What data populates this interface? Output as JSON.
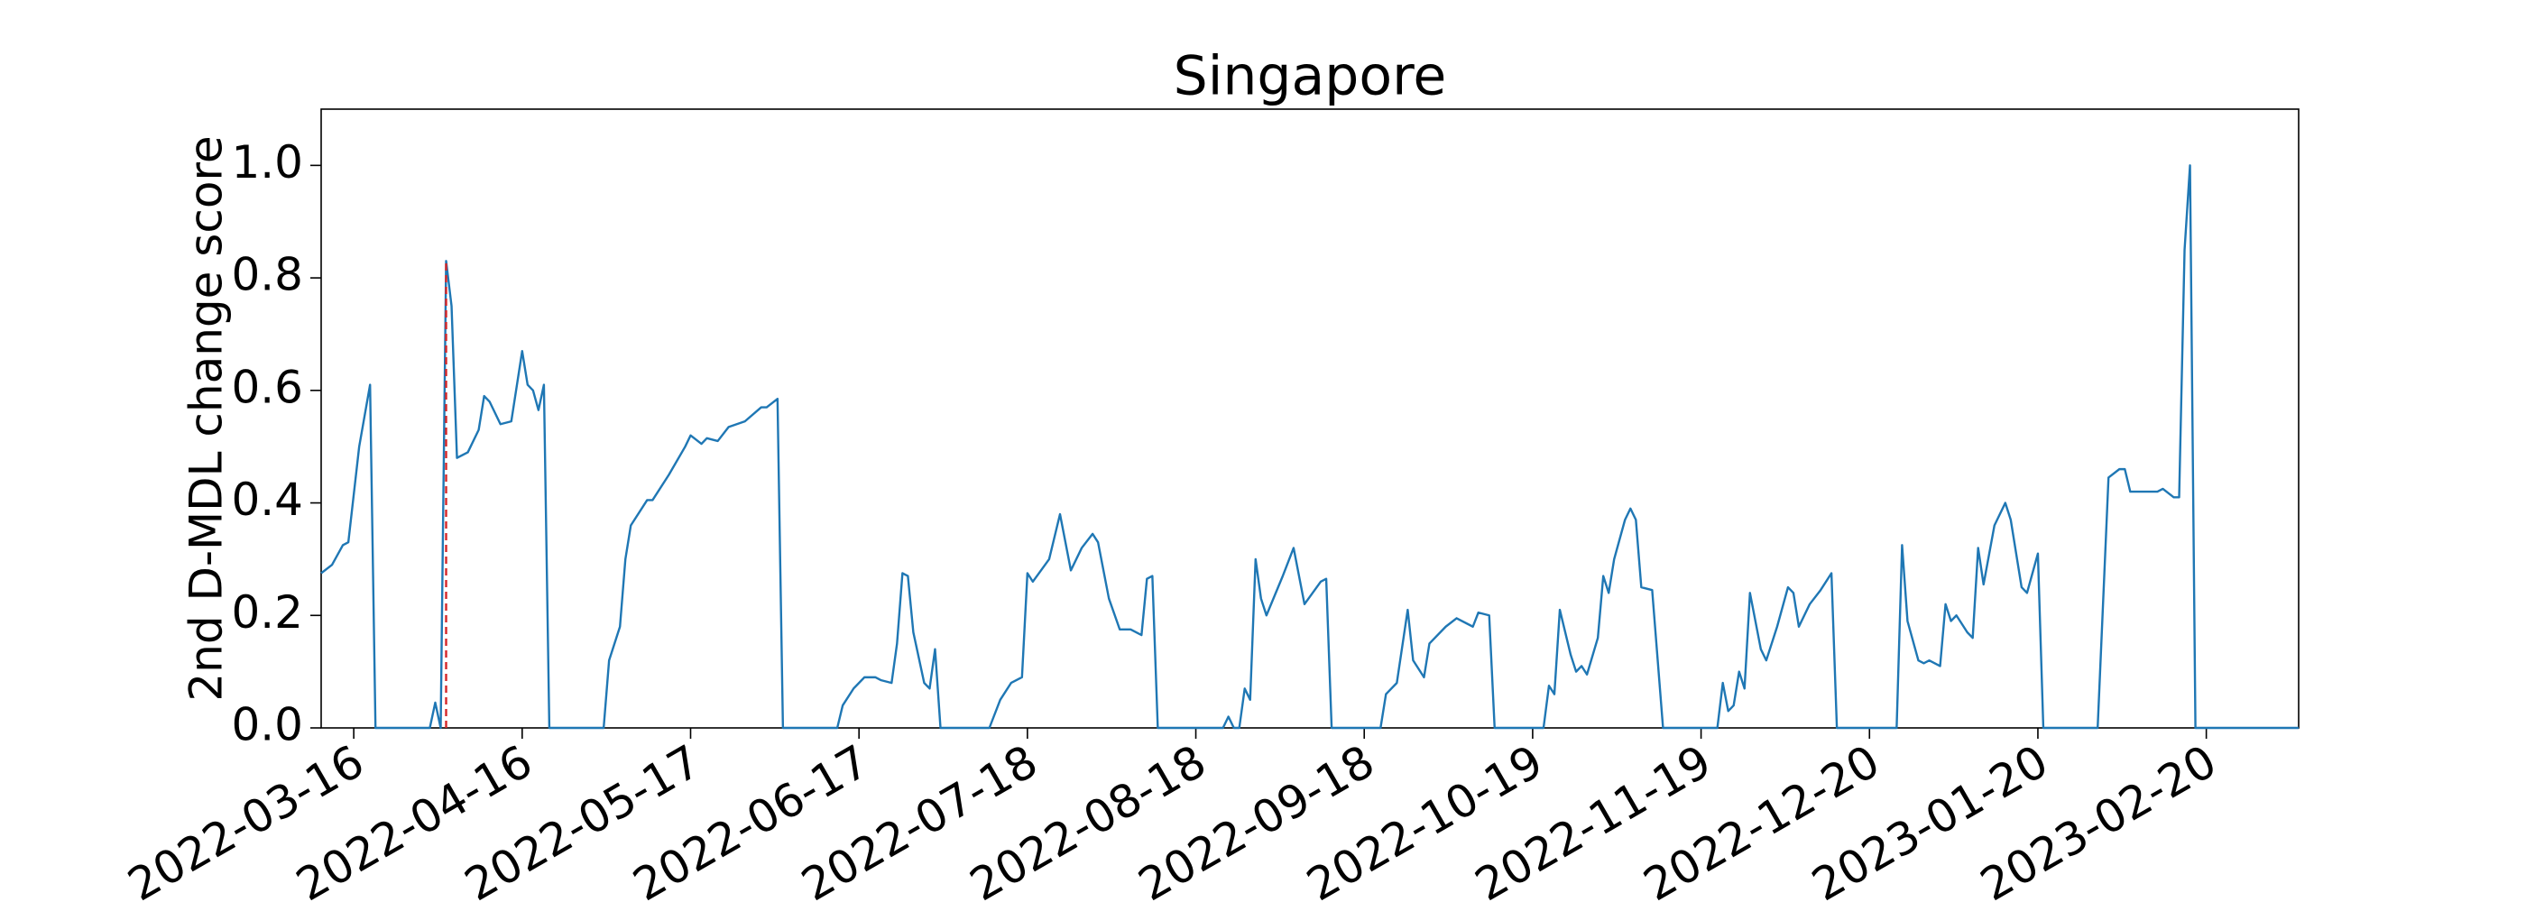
{
  "chart_data": {
    "type": "line",
    "title": "Singapore",
    "y_label": "2nd D-MDL change score",
    "color": "#1f77b4",
    "x": [
      "2022-03-10",
      "2022-03-12",
      "2022-03-14",
      "2022-03-15",
      "2022-03-17",
      "2022-03-19",
      "2022-03-20",
      "2022-03-30",
      "2022-03-31",
      "2022-04-01",
      "2022-04-02",
      "2022-04-03",
      "2022-04-04",
      "2022-04-06",
      "2022-04-08",
      "2022-04-09",
      "2022-04-10",
      "2022-04-12",
      "2022-04-14",
      "2022-04-16",
      "2022-04-17",
      "2022-04-18",
      "2022-04-19",
      "2022-04-20",
      "2022-04-21",
      "2022-05-01",
      "2022-05-02",
      "2022-05-04",
      "2022-05-05",
      "2022-05-06",
      "2022-05-09",
      "2022-05-10",
      "2022-05-13",
      "2022-05-16",
      "2022-05-17",
      "2022-05-19",
      "2022-05-20",
      "2022-05-22",
      "2022-05-24",
      "2022-05-27",
      "2022-05-30",
      "2022-05-31",
      "2022-06-02",
      "2022-06-03",
      "2022-06-13",
      "2022-06-14",
      "2022-06-16",
      "2022-06-18",
      "2022-06-20",
      "2022-06-21",
      "2022-06-23",
      "2022-06-24",
      "2022-06-25",
      "2022-06-26",
      "2022-06-27",
      "2022-06-29",
      "2022-06-30",
      "2022-07-01",
      "2022-07-02",
      "2022-07-11",
      "2022-07-13",
      "2022-07-15",
      "2022-07-17",
      "2022-07-18",
      "2022-07-19",
      "2022-07-22",
      "2022-07-24",
      "2022-07-26",
      "2022-07-28",
      "2022-07-30",
      "2022-07-31",
      "2022-08-02",
      "2022-08-04",
      "2022-08-06",
      "2022-08-08",
      "2022-08-09",
      "2022-08-10",
      "2022-08-11",
      "2022-08-23",
      "2022-08-24",
      "2022-08-25",
      "2022-08-26",
      "2022-08-27",
      "2022-08-28",
      "2022-08-29",
      "2022-08-30",
      "2022-08-31",
      "2022-09-03",
      "2022-09-05",
      "2022-09-07",
      "2022-09-10",
      "2022-09-11",
      "2022-09-12",
      "2022-09-21",
      "2022-09-22",
      "2022-09-24",
      "2022-09-26",
      "2022-09-27",
      "2022-09-29",
      "2022-09-30",
      "2022-10-03",
      "2022-10-05",
      "2022-10-08",
      "2022-10-09",
      "2022-10-11",
      "2022-10-12",
      "2022-10-21",
      "2022-10-22",
      "2022-10-23",
      "2022-10-24",
      "2022-10-26",
      "2022-10-27",
      "2022-10-28",
      "2022-10-29",
      "2022-10-31",
      "2022-11-01",
      "2022-11-02",
      "2022-11-03",
      "2022-11-05",
      "2022-11-06",
      "2022-11-07",
      "2022-11-08",
      "2022-11-10",
      "2022-11-12",
      "2022-11-22",
      "2022-11-23",
      "2022-11-24",
      "2022-11-25",
      "2022-11-26",
      "2022-11-27",
      "2022-11-28",
      "2022-11-30",
      "2022-12-01",
      "2022-12-03",
      "2022-12-05",
      "2022-12-06",
      "2022-12-07",
      "2022-12-09",
      "2022-12-11",
      "2022-12-13",
      "2022-12-14",
      "2022-12-25",
      "2022-12-26",
      "2022-12-27",
      "2022-12-29",
      "2022-12-30",
      "2022-12-31",
      "2023-01-02",
      "2023-01-03",
      "2023-01-04",
      "2023-01-05",
      "2023-01-07",
      "2023-01-08",
      "2023-01-09",
      "2023-01-10",
      "2023-01-12",
      "2023-01-14",
      "2023-01-15",
      "2023-01-17",
      "2023-01-18",
      "2023-01-20",
      "2023-01-21",
      "2023-01-31",
      "2023-02-02",
      "2023-02-04",
      "2023-02-05",
      "2023-02-06",
      "2023-02-11",
      "2023-02-12",
      "2023-02-14",
      "2023-02-15",
      "2023-02-16",
      "2023-02-17",
      "2023-02-18",
      "2023-03-09"
    ],
    "values": [
      0.275,
      0.29,
      0.325,
      0.33,
      0.5,
      0.61,
      0,
      0,
      0.045,
      0,
      0.83,
      0.75,
      0.48,
      0.49,
      0.53,
      0.59,
      0.58,
      0.54,
      0.545,
      0.67,
      0.61,
      0.6,
      0.565,
      0.61,
      0,
      0,
      0.12,
      0.18,
      0.3,
      0.36,
      0.405,
      0.405,
      0.45,
      0.5,
      0.52,
      0.505,
      0.515,
      0.51,
      0.535,
      0.545,
      0.57,
      0.57,
      0.585,
      0,
      0,
      0.04,
      0.07,
      0.09,
      0.09,
      0.085,
      0.08,
      0.15,
      0.275,
      0.27,
      0.17,
      0.08,
      0.07,
      0.14,
      0,
      0,
      0.05,
      0.08,
      0.09,
      0.275,
      0.26,
      0.3,
      0.38,
      0.28,
      0.32,
      0.345,
      0.33,
      0.23,
      0.175,
      0.175,
      0.165,
      0.265,
      0.27,
      0,
      0,
      0.02,
      0,
      0,
      0.07,
      0.05,
      0.3,
      0.23,
      0.2,
      0.27,
      0.32,
      0.22,
      0.26,
      0.265,
      0,
      0,
      0.06,
      0.08,
      0.21,
      0.12,
      0.09,
      0.15,
      0.18,
      0.195,
      0.18,
      0.205,
      0.2,
      0,
      0,
      0.075,
      0.06,
      0.21,
      0.13,
      0.1,
      0.11,
      0.095,
      0.16,
      0.27,
      0.24,
      0.3,
      0.37,
      0.39,
      0.37,
      0.25,
      0.245,
      0,
      0,
      0.08,
      0.03,
      0.04,
      0.1,
      0.07,
      0.24,
      0.14,
      0.12,
      0.18,
      0.25,
      0.24,
      0.18,
      0.22,
      0.245,
      0.275,
      0,
      0,
      0.325,
      0.19,
      0.12,
      0.115,
      0.12,
      0.11,
      0.22,
      0.19,
      0.2,
      0.17,
      0.16,
      0.32,
      0.255,
      0.36,
      0.4,
      0.37,
      0.25,
      0.24,
      0.31,
      0,
      0,
      0.445,
      0.46,
      0.46,
      0.42,
      0.42,
      0.425,
      0.41,
      0.41,
      0.85,
      1.0,
      0,
      0
    ],
    "xlim": [
      "2022-03-10",
      "2023-03-09"
    ],
    "xticks": [
      "2022-03-16",
      "2022-04-16",
      "2022-05-17",
      "2022-06-17",
      "2022-07-18",
      "2022-08-18",
      "2022-09-18",
      "2022-10-19",
      "2022-11-19",
      "2022-12-20",
      "2023-01-20",
      "2023-02-20"
    ],
    "ylim": [
      0,
      1.1
    ],
    "yticks": [
      {
        "value": 0,
        "label": "0.0"
      },
      0.2,
      0.4,
      0.6,
      0.8,
      {
        "value": 1,
        "label": "1.0"
      }
    ],
    "marker": {
      "x": "2022-04-02",
      "ymax": 0.83,
      "color": "#d62728",
      "style": "dashed"
    }
  }
}
